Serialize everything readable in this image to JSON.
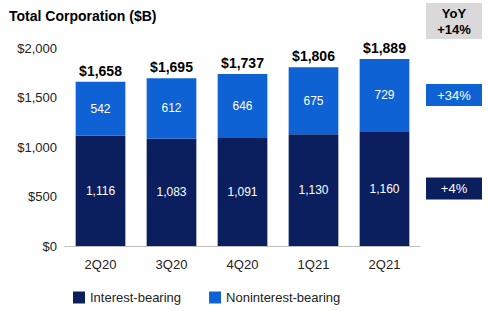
{
  "chart_data": {
    "type": "bar",
    "title": "Total Corporation ($B)",
    "categories": [
      "2Q20",
      "3Q20",
      "4Q20",
      "1Q21",
      "2Q21"
    ],
    "series": [
      {
        "name": "Interest-bearing",
        "color": "#0b1f5e",
        "values": [
          1116,
          1083,
          1091,
          1130,
          1160
        ],
        "value_labels": [
          "1,116",
          "1,083",
          "1,091",
          "1,130",
          "1,160"
        ]
      },
      {
        "name": "Noninterest-bearing",
        "color": "#0f62d4",
        "values": [
          542,
          612,
          646,
          675,
          729
        ]
      }
    ],
    "totals": [
      1658,
      1695,
      1737,
      1806,
      1889
    ],
    "total_labels": [
      "$1,658",
      "$1,695",
      "$1,737",
      "$1,806",
      "$1,889"
    ],
    "annotations": [
      {
        "text": "YoY\n+14%",
        "color": "#d9d9d9"
      },
      {
        "text": "+34%",
        "series": "Noninterest-bearing"
      },
      {
        "text": "+4%",
        "series": "Interest-bearing"
      }
    ],
    "ylim": [
      0,
      2000
    ],
    "yticks": [
      {
        "value": 0,
        "label": "$0"
      },
      {
        "value": 500,
        "label": "$500"
      },
      {
        "value": 1000,
        "label": "$1,000"
      },
      {
        "value": 1500,
        "label": "$1,500"
      },
      {
        "value": 2000,
        "label": "$2,000"
      }
    ],
    "stacked": true,
    "data_labels": true,
    "grid": false,
    "legend": "bottom-left"
  }
}
